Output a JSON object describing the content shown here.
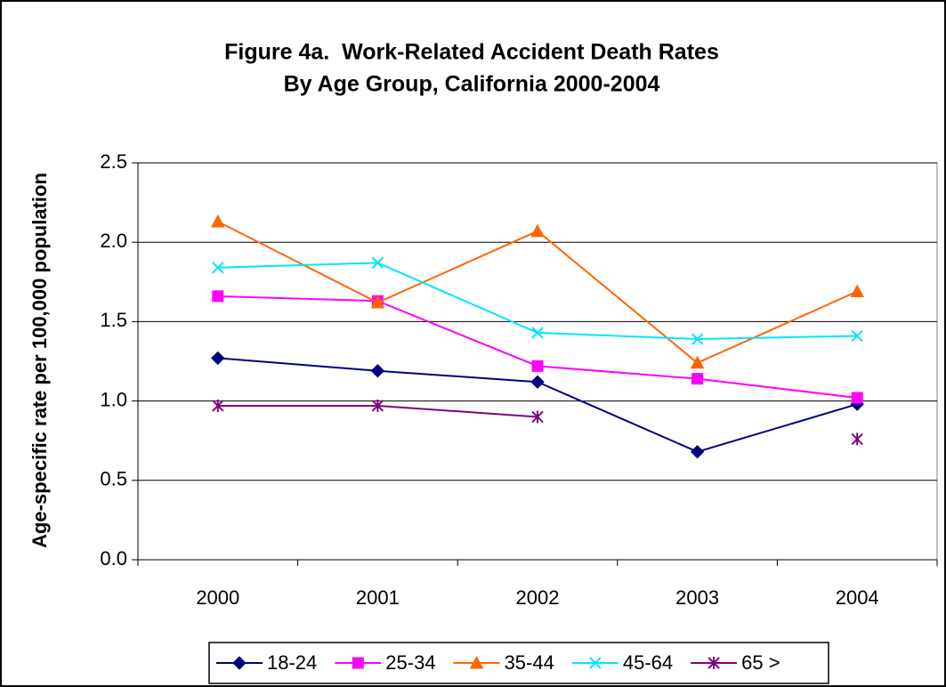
{
  "chart_data": {
    "type": "line",
    "title": "Figure 4a.  Work-Related Accident Death Rates",
    "subtitle": "By Age Group, California 2000-2004",
    "y_label": "Age-specific rate per 100,000 population",
    "categories": [
      "2000",
      "2001",
      "2002",
      "2003",
      "2004"
    ],
    "series": [
      {
        "name": "18-24",
        "color": "#000080",
        "marker": "diamond",
        "values": [
          1.27,
          1.19,
          1.12,
          0.68,
          0.98
        ]
      },
      {
        "name": "25-34",
        "color": "#ff00ff",
        "marker": "square",
        "values": [
          1.66,
          1.63,
          1.22,
          1.14,
          1.02
        ]
      },
      {
        "name": "35-44",
        "color": "#ff6600",
        "marker": "triangle",
        "values": [
          2.13,
          1.62,
          2.07,
          1.24,
          1.69
        ]
      },
      {
        "name": "45-64",
        "color": "#00e5ff",
        "marker": "x",
        "values": [
          1.84,
          1.87,
          1.43,
          1.39,
          1.41
        ]
      },
      {
        "name": "65 >",
        "color": "#800080",
        "marker": "star",
        "values": [
          0.97,
          0.97,
          0.9,
          null,
          0.76
        ]
      }
    ],
    "ylim": [
      0,
      2.5
    ],
    "yticks": [
      {
        "value": 0,
        "label": "0.0"
      },
      0.5,
      {
        "value": 1,
        "label": "1.0"
      },
      1.5,
      {
        "value": 2,
        "label": "2.0"
      },
      2.5
    ],
    "grid": true,
    "legend": "bottom"
  }
}
